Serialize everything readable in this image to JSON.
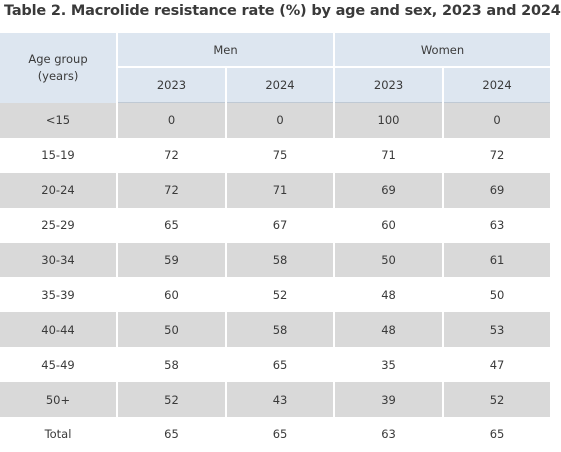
{
  "title": "Table 2. Macrolide resistance rate (%) by age and sex, 2023 and 2024",
  "header": {
    "age_group_line1": "Age group",
    "age_group_line2": "(years)",
    "men": "Men",
    "women": "Women",
    "years": [
      "2023",
      "2024",
      "2023",
      "2024"
    ]
  },
  "rows": [
    {
      "age": "<15",
      "men_2023": "0",
      "men_2024": "0",
      "women_2023": "100",
      "women_2024": "0"
    },
    {
      "age": "15-19",
      "men_2023": "72",
      "men_2024": "75",
      "women_2023": "71",
      "women_2024": "72"
    },
    {
      "age": "20-24",
      "men_2023": "72",
      "men_2024": "71",
      "women_2023": "69",
      "women_2024": "69"
    },
    {
      "age": "25-29",
      "men_2023": "65",
      "men_2024": "67",
      "women_2023": "60",
      "women_2024": "63"
    },
    {
      "age": "30-34",
      "men_2023": "59",
      "men_2024": "58",
      "women_2023": "50",
      "women_2024": "61"
    },
    {
      "age": "35-39",
      "men_2023": "60",
      "men_2024": "52",
      "women_2023": "48",
      "women_2024": "50"
    },
    {
      "age": "40-44",
      "men_2023": "50",
      "men_2024": "58",
      "women_2023": "48",
      "women_2024": "53"
    },
    {
      "age": "45-49",
      "men_2023": "58",
      "men_2024": "65",
      "women_2023": "35",
      "women_2024": "47"
    },
    {
      "age": "50+",
      "men_2023": "52",
      "men_2024": "43",
      "women_2023": "39",
      "women_2024": "52"
    },
    {
      "age": "Total",
      "men_2023": "65",
      "men_2024": "65",
      "women_2023": "63",
      "women_2024": "65"
    }
  ],
  "colors": {
    "header_bg": "#dde6f0",
    "row_shade": "#d9d9d9",
    "row_plain": "#ffffff",
    "text": "#3a3a3a"
  }
}
